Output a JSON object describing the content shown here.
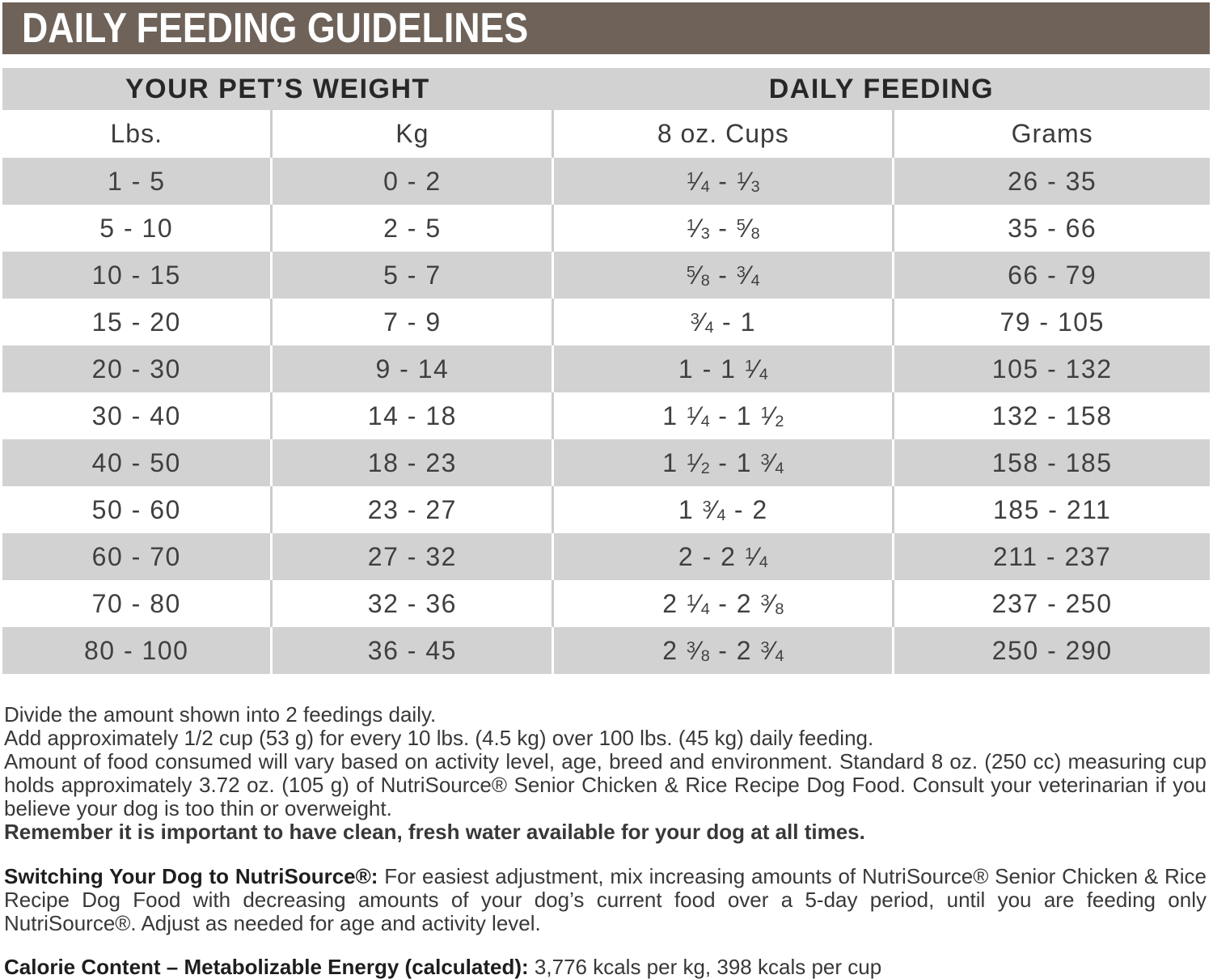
{
  "title_bar": {
    "title": "DAILY FEEDING GUIDELINES"
  },
  "table": {
    "group_headers": {
      "weight": "YOUR PET’S WEIGHT",
      "feeding": "DAILY FEEDING"
    },
    "columns": {
      "lbs": "Lbs.",
      "kg": "Kg",
      "cups": "8 oz. Cups",
      "grams": "Grams"
    },
    "rows": [
      {
        "lbs": "1 - 5",
        "kg": "0 - 2",
        "cups": "1/4 - 1/3",
        "grams": "26 - 35"
      },
      {
        "lbs": "5 - 10",
        "kg": "2 - 5",
        "cups": "1/3 - 5/8",
        "grams": "35 - 66"
      },
      {
        "lbs": "10 - 15",
        "kg": "5 - 7",
        "cups": "5/8 - 3/4",
        "grams": "66 - 79"
      },
      {
        "lbs": "15 - 20",
        "kg": "7 - 9",
        "cups": "3/4 - 1",
        "grams": "79 - 105"
      },
      {
        "lbs": "20 - 30",
        "kg": "9 - 14",
        "cups": "1 - 1 1/4",
        "grams": "105 - 132"
      },
      {
        "lbs": "30 - 40",
        "kg": "14 - 18",
        "cups": "1 1/4 - 1 1/2",
        "grams": "132 - 158"
      },
      {
        "lbs": "40 - 50",
        "kg": "18 - 23",
        "cups": "1 1/2 - 1 3/4",
        "grams": "158 - 185"
      },
      {
        "lbs": "50 - 60",
        "kg": "23 - 27",
        "cups": "1 3/4 - 2",
        "grams": "185 - 211"
      },
      {
        "lbs": "60 - 70",
        "kg": "27 - 32",
        "cups": "2 - 2 1/4",
        "grams": "211 - 237"
      },
      {
        "lbs": "70 - 80",
        "kg": "32 - 36",
        "cups": "2 1/4 - 2 3/8",
        "grams": "237 - 250"
      },
      {
        "lbs": "80 - 100",
        "kg": "36 - 45",
        "cups": "2 3/8 - 2 3/4",
        "grams": "250 - 290"
      }
    ]
  },
  "notes": {
    "line1": "Divide the amount shown into 2 feedings daily.",
    "line2": "Add approximately 1/2 cup (53 g) for every 10 lbs. (4.5 kg) over 100 lbs. (45 kg) daily feeding.",
    "line3": "Amount of food consumed will vary based on activity level, age, breed and environment. Standard 8 oz. (250 cc) measuring cup holds approximately 3.72 oz. (105 g) of NutriSource® Senior Chicken & Rice Recipe Dog Food. Consult your veterinarian if you believe your dog is too thin or overweight.",
    "line4": "Remember it is important to have clean, fresh water available for your dog at all times."
  },
  "switching": {
    "lead": "Switching Your Dog to NutriSource®:",
    "text": "For easiest adjustment, mix increasing amounts of NutriSource® Senior Chicken & Rice Recipe Dog Food with decreasing amounts of your dog’s current food over a 5-day period, until you are feeding only NutriSource®. Adjust as needed for age and activity level."
  },
  "calorie": {
    "lead": "Calorie Content – Metabolizable Energy (calculated):",
    "text": "3,776 kcals per kg, 398 kcals per cup"
  },
  "colors": {
    "header_bar": "#6e6259",
    "row_shade": "#d2d2d2",
    "text_dark": "#3f3f3f"
  }
}
